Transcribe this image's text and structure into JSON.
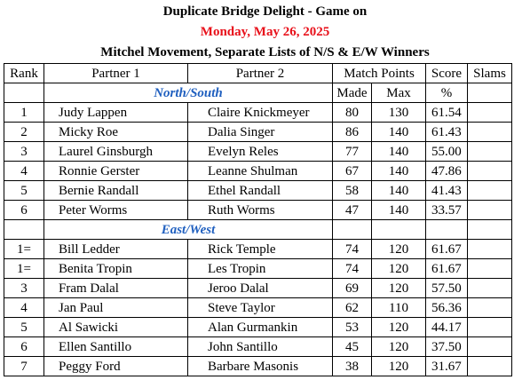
{
  "header": {
    "title": "Duplicate Bridge Delight - Game on",
    "date": "Monday, May 26, 2025",
    "subtitle": "Mitchel Movement, Separate Lists of N/S & E/W Winners"
  },
  "columns": {
    "rank": "Rank",
    "partner1": "Partner 1",
    "partner2": "Partner 2",
    "match_points": "Match Points",
    "made": "Made",
    "max": "Max",
    "score": "Score",
    "score_unit": "%",
    "slams": "Slams"
  },
  "north_south": {
    "label": "North/South",
    "rows": [
      {
        "rank": "1",
        "p1": "Judy Lappen",
        "p2": "Claire Knickmeyer",
        "made": "80",
        "max": "130",
        "score": "61.54"
      },
      {
        "rank": "2",
        "p1": "Micky Roe",
        "p2": "Dalia Singer",
        "made": "86",
        "max": "140",
        "score": "61.43"
      },
      {
        "rank": "3",
        "p1": "Laurel Ginsburgh",
        "p2": "Evelyn Reles",
        "made": "77",
        "max": "140",
        "score": "55.00"
      },
      {
        "rank": "4",
        "p1": "Ronnie Gerster",
        "p2": "Leanne Shulman",
        "made": "67",
        "max": "140",
        "score": "47.86"
      },
      {
        "rank": "5",
        "p1": "Bernie Randall",
        "p2": "Ethel Randall",
        "made": "58",
        "max": "140",
        "score": "41.43"
      },
      {
        "rank": "6",
        "p1": "Peter Worms",
        "p2": "Ruth Worms",
        "made": "47",
        "max": "140",
        "score": "33.57"
      }
    ]
  },
  "east_west": {
    "label": "East/West",
    "rows": [
      {
        "rank": "1=",
        "p1": "Bill Ledder",
        "p2": "Rick Temple",
        "made": "74",
        "max": "120",
        "score": "61.67"
      },
      {
        "rank": "1=",
        "p1": "Benita Tropin",
        "p2": "Les Tropin",
        "made": "74",
        "max": "120",
        "score": "61.67"
      },
      {
        "rank": "3",
        "p1": "Fram Dalal",
        "p2": "Jeroo Dalal",
        "made": "69",
        "max": "120",
        "score": "57.50"
      },
      {
        "rank": "4",
        "p1": "Jan Paul",
        "p2": "Steve Taylor",
        "made": "62",
        "max": "110",
        "score": "56.36"
      },
      {
        "rank": "5",
        "p1": "Al Sawicki",
        "p2": "Alan Gurmankin",
        "made": "53",
        "max": "120",
        "score": "44.17"
      },
      {
        "rank": "6",
        "p1": "Ellen Santillo",
        "p2": "John Santillo",
        "made": "45",
        "max": "120",
        "score": "37.50"
      },
      {
        "rank": "7",
        "p1": "Peggy Ford",
        "p2": "Barbare Masonis",
        "made": "38",
        "max": "120",
        "score": "31.67"
      }
    ]
  }
}
